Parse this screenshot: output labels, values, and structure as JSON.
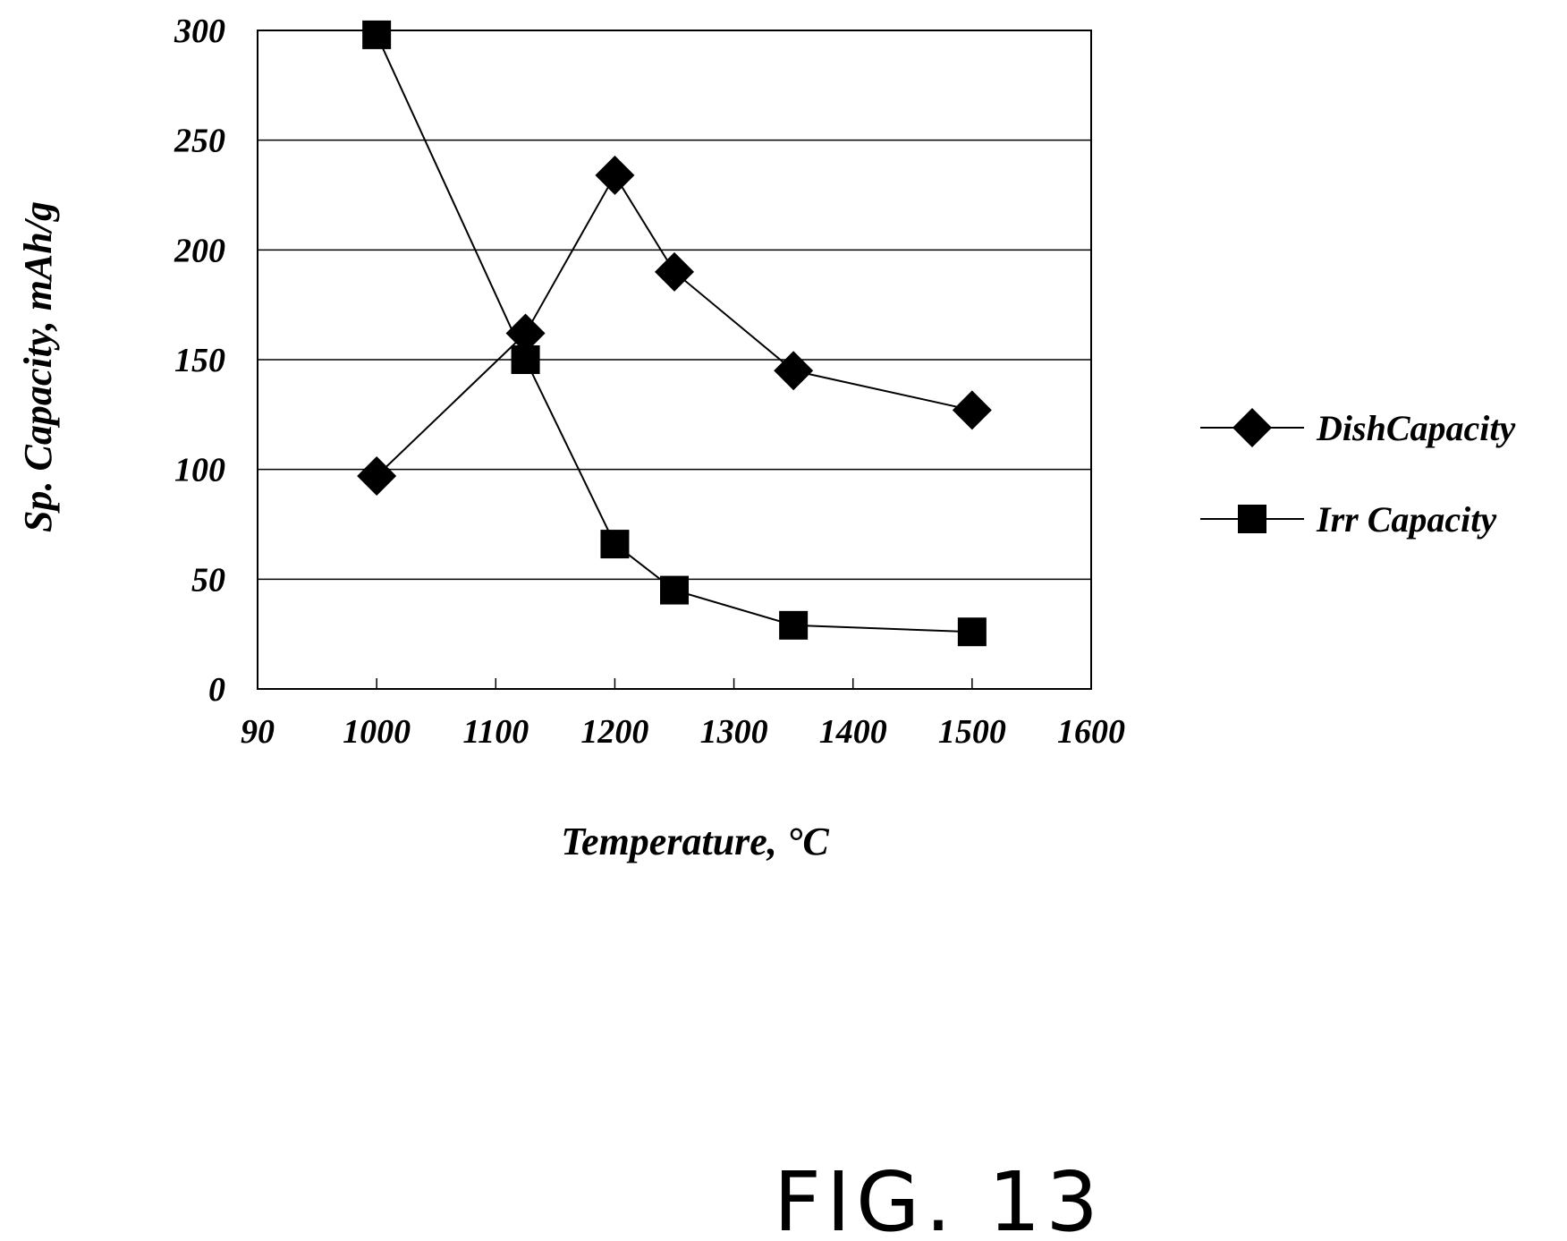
{
  "chart_data": {
    "type": "line",
    "title": "",
    "xlabel": "Temperature, °C",
    "ylabel": "Sp. Capacity, mAh/g",
    "x_tick_labels": [
      "90",
      "1000",
      "1100",
      "1200",
      "1300",
      "1400",
      "1500",
      "1600"
    ],
    "y_tick_labels": [
      "0",
      "50",
      "100",
      "150",
      "200",
      "250",
      "300"
    ],
    "xlim": [
      900,
      1600
    ],
    "ylim": [
      0,
      300
    ],
    "grid": "horizontal",
    "legend_position": "right",
    "series": [
      {
        "name": "DishCapacity",
        "marker": "diamond",
        "x": [
          1000,
          1125,
          1200,
          1250,
          1350,
          1500
        ],
        "y": [
          97,
          162,
          234,
          190,
          145,
          127
        ]
      },
      {
        "name": "Irr Capacity",
        "marker": "square",
        "x": [
          1000,
          1125,
          1200,
          1250,
          1350,
          1500
        ],
        "y": [
          298,
          150,
          66,
          45,
          29,
          26
        ]
      }
    ]
  },
  "figure_label": "FIG. 13",
  "colors": {
    "ink": "#000000",
    "grid": "#000000",
    "background": "#ffffff"
  }
}
